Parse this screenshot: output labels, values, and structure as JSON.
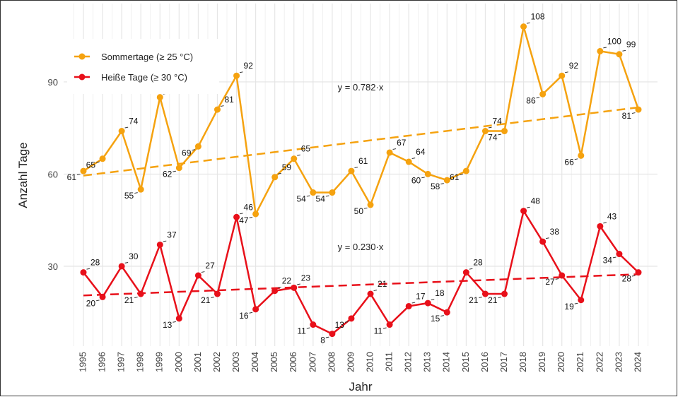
{
  "chart_data": {
    "type": "line",
    "categories": [
      "1995",
      "1996",
      "1997",
      "1998",
      "1999",
      "2000",
      "2001",
      "2002",
      "2003",
      "2004",
      "2005",
      "2006",
      "2007",
      "2008",
      "2009",
      "2010",
      "2011",
      "2012",
      "2013",
      "2014",
      "2015",
      "2016",
      "2017",
      "2018",
      "2019",
      "2020",
      "2021",
      "2022",
      "2023",
      "2024"
    ],
    "series": [
      {
        "name": "Sommertage (≥ 25 °C)",
        "color": "#f5a20f",
        "values": [
          61,
          65,
          74,
          55,
          85,
          62,
          69,
          81,
          92,
          47,
          59,
          65,
          54,
          54,
          61,
          50,
          67,
          64,
          60,
          58,
          61,
          74,
          74,
          108,
          86,
          92,
          66,
          100,
          99,
          81
        ],
        "trend": {
          "label": "y = 0.782·x",
          "start": 59.5,
          "end": 81.7
        }
      },
      {
        "name": "Heiße Tage (≥ 30 °C)",
        "color": "#e8101a",
        "values": [
          28,
          20,
          30,
          21,
          37,
          13,
          27,
          21,
          46,
          16,
          22,
          23,
          11,
          8,
          13,
          21,
          11,
          17,
          18,
          15,
          28,
          21,
          21,
          48,
          38,
          27,
          19,
          43,
          34,
          28
        ],
        "trend": {
          "label": "y = 0.230·x",
          "start": 20.5,
          "end": 27.4
        }
      }
    ],
    "ylim": [
      4,
      115.5
    ],
    "yticks": [
      30,
      60,
      90
    ],
    "grid": true,
    "x_label": "Jahr",
    "y_label": "Anzahl Tage",
    "legend": "top-left"
  }
}
